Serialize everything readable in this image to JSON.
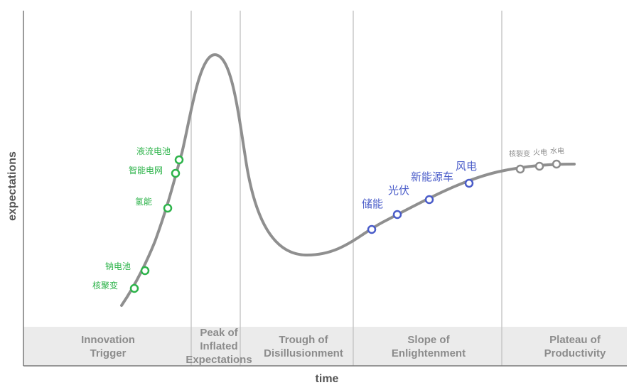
{
  "chart_data": {
    "type": "line",
    "title": "",
    "xlabel": "time",
    "ylabel": "expectations",
    "grid": false,
    "phases": [
      {
        "lines": [
          "Innovation",
          "Trigger"
        ]
      },
      {
        "lines": [
          "Peak of",
          "Inflated",
          "Expectations"
        ]
      },
      {
        "lines": [
          "Trough of",
          "Disillusionment"
        ]
      },
      {
        "lines": [
          "Slope of",
          "Enlightenment"
        ]
      },
      {
        "lines": [
          "Plateau of",
          "Productivity"
        ]
      }
    ],
    "points": [
      {
        "label": "液流电池",
        "phase": "Innovation Trigger",
        "color": "#2db34a"
      },
      {
        "label": "智能电网",
        "phase": "Innovation Trigger",
        "color": "#2db34a"
      },
      {
        "label": "氢能",
        "phase": "Innovation Trigger",
        "color": "#2db34a"
      },
      {
        "label": "钠电池",
        "phase": "Innovation Trigger",
        "color": "#2db34a"
      },
      {
        "label": "核聚变",
        "phase": "Innovation Trigger",
        "color": "#2db34a"
      },
      {
        "label": "储能",
        "phase": "Slope of Enlightenment",
        "color": "#4a5cc9"
      },
      {
        "label": "光伏",
        "phase": "Slope of Enlightenment",
        "color": "#4a5cc9"
      },
      {
        "label": "新能源车",
        "phase": "Slope of Enlightenment",
        "color": "#4a5cc9"
      },
      {
        "label": "风电",
        "phase": "Slope of Enlightenment",
        "color": "#4a5cc9"
      },
      {
        "label": "核裂变",
        "phase": "Plateau of Productivity",
        "color": "#8c8c8c"
      },
      {
        "label": "火电",
        "phase": "Plateau of Productivity",
        "color": "#8c8c8c"
      },
      {
        "label": "水电",
        "phase": "Plateau of Productivity",
        "color": "#8c8c8c"
      }
    ],
    "colors": {
      "curve": "#8f8f8f",
      "band": "#ebebeb",
      "divider": "#c8c8c8",
      "axis": "#7a7a7a"
    }
  }
}
